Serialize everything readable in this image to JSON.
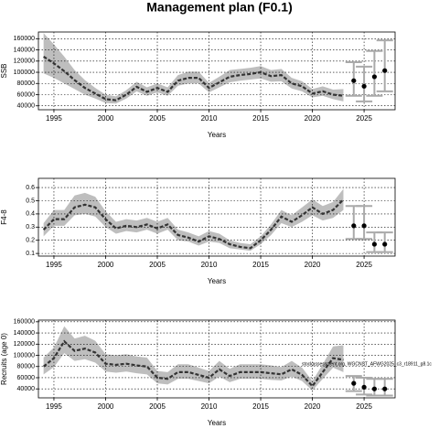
{
  "title": "Management plan (F0.1)",
  "chart_data": [
    {
      "type": "band-line",
      "xlabel": "Years",
      "ylabel": "SSB",
      "xlim": [
        1993.5,
        2028
      ],
      "xticks": [
        1995,
        2000,
        2005,
        2010,
        2015,
        2020,
        2025
      ],
      "ylim": [
        33000,
        172000
      ],
      "yticks": [
        40000,
        60000,
        80000,
        100000,
        120000,
        140000,
        160000
      ],
      "grid": true,
      "band_color": "#bebebe",
      "line_color": "#333333",
      "point_color": "#000000",
      "errorbar_color": "#aaaaaa",
      "x": [
        1994,
        1995,
        1996,
        1997,
        1998,
        1999,
        2000,
        2001,
        2002,
        2003,
        2004,
        2005,
        2006,
        2007,
        2008,
        2009,
        2010,
        2011,
        2012,
        2013,
        2014,
        2015,
        2016,
        2017,
        2018,
        2019,
        2020,
        2021,
        2022,
        2023
      ],
      "values": [
        128000,
        116000,
        102000,
        86000,
        72000,
        62000,
        52000,
        50000,
        60000,
        74000,
        65000,
        72000,
        65000,
        85000,
        90000,
        90000,
        72000,
        82000,
        92000,
        95000,
        97000,
        100000,
        93000,
        95000,
        80000,
        75000,
        62000,
        66000,
        60000,
        58000
      ],
      "upper": [
        170000,
        150000,
        128000,
        104000,
        86000,
        72000,
        60000,
        57000,
        68000,
        83000,
        73000,
        80000,
        73000,
        95000,
        101000,
        101000,
        81000,
        92000,
        104000,
        106000,
        108000,
        111000,
        104000,
        106000,
        90000,
        84000,
        70000,
        75000,
        69000,
        70000
      ],
      "lower": [
        98000,
        90000,
        80000,
        70000,
        60000,
        53000,
        45000,
        44000,
        53000,
        66000,
        58000,
        64000,
        58000,
        76000,
        80000,
        80000,
        64000,
        73000,
        82000,
        85000,
        87000,
        89000,
        83000,
        84000,
        71000,
        66000,
        55000,
        58000,
        52000,
        48000
      ],
      "forecast": {
        "x": [
          2024,
          2025,
          2026,
          2027
        ],
        "values": [
          85000,
          75000,
          92000,
          103000
        ],
        "low": [
          58000,
          48000,
          58000,
          66000
        ],
        "high": [
          118000,
          110000,
          138000,
          157000
        ]
      }
    },
    {
      "type": "band-line",
      "xlabel": "Years",
      "ylabel": "F4-8",
      "xlim": [
        1993.5,
        2028
      ],
      "xticks": [
        1995,
        2000,
        2005,
        2010,
        2015,
        2020,
        2025
      ],
      "ylim": [
        0.08,
        0.67
      ],
      "yticks": [
        0.1,
        0.2,
        0.3,
        0.4,
        0.5,
        0.6
      ],
      "grid": true,
      "band_color": "#bebebe",
      "line_color": "#333333",
      "point_color": "#000000",
      "errorbar_color": "#aaaaaa",
      "x": [
        1994,
        1995,
        1996,
        1997,
        1998,
        1999,
        2000,
        2001,
        2002,
        2003,
        2004,
        2005,
        2006,
        2007,
        2008,
        2009,
        2010,
        2011,
        2012,
        2013,
        2014,
        2015,
        2016,
        2017,
        2018,
        2019,
        2020,
        2021,
        2022,
        2023
      ],
      "values": [
        0.28,
        0.36,
        0.36,
        0.45,
        0.47,
        0.45,
        0.36,
        0.29,
        0.31,
        0.3,
        0.32,
        0.29,
        0.32,
        0.24,
        0.22,
        0.19,
        0.23,
        0.21,
        0.17,
        0.15,
        0.14,
        0.2,
        0.28,
        0.38,
        0.34,
        0.39,
        0.45,
        0.4,
        0.43,
        0.51
      ],
      "upper": [
        0.33,
        0.43,
        0.43,
        0.54,
        0.56,
        0.53,
        0.42,
        0.34,
        0.36,
        0.35,
        0.37,
        0.34,
        0.37,
        0.28,
        0.26,
        0.23,
        0.27,
        0.25,
        0.2,
        0.18,
        0.17,
        0.23,
        0.32,
        0.43,
        0.39,
        0.45,
        0.51,
        0.46,
        0.49,
        0.59
      ],
      "lower": [
        0.23,
        0.31,
        0.31,
        0.39,
        0.4,
        0.38,
        0.3,
        0.25,
        0.27,
        0.26,
        0.28,
        0.25,
        0.28,
        0.2,
        0.19,
        0.16,
        0.19,
        0.18,
        0.14,
        0.13,
        0.12,
        0.17,
        0.24,
        0.33,
        0.3,
        0.34,
        0.39,
        0.35,
        0.37,
        0.43
      ],
      "forecast": {
        "x": [
          2024,
          2025,
          2026,
          2027
        ],
        "values": [
          0.31,
          0.31,
          0.17,
          0.17
        ],
        "low": [
          0.21,
          0.21,
          0.11,
          0.11
        ],
        "high": [
          0.46,
          0.46,
          0.26,
          0.26
        ]
      }
    },
    {
      "type": "band-line",
      "xlabel": "Years",
      "ylabel": "Recruits (age 0)",
      "annotation": "stockassessment.org, WGCNST_AFWG2025_c3_r18911_g8.1c",
      "xlim": [
        1993.5,
        2028
      ],
      "xticks": [
        1995,
        2000,
        2005,
        2010,
        2015,
        2020,
        2025
      ],
      "ylim": [
        24000,
        163000
      ],
      "yticks": [
        40000,
        60000,
        80000,
        100000,
        120000,
        140000,
        160000
      ],
      "grid": true,
      "band_color": "#bebebe",
      "line_color": "#333333",
      "point_color": "#000000",
      "errorbar_color": "#aaaaaa",
      "x": [
        1994,
        1995,
        1996,
        1997,
        1998,
        1999,
        2000,
        2001,
        2002,
        2003,
        2004,
        2005,
        2006,
        2007,
        2008,
        2009,
        2010,
        2011,
        2012,
        2013,
        2014,
        2015,
        2016,
        2017,
        2018,
        2019,
        2020,
        2021,
        2022,
        2023
      ],
      "values": [
        80000,
        95000,
        125000,
        108000,
        112000,
        105000,
        85000,
        83000,
        85000,
        82000,
        80000,
        60000,
        58000,
        70000,
        70000,
        65000,
        60000,
        75000,
        63000,
        70000,
        70000,
        70000,
        68000,
        66000,
        75000,
        65000,
        45000,
        70000,
        95000,
        92000
      ],
      "upper": [
        96000,
        114000,
        152000,
        130000,
        135000,
        126000,
        102000,
        100000,
        102000,
        98000,
        96000,
        72000,
        70000,
        84000,
        84000,
        78000,
        72000,
        90000,
        76000,
        84000,
        84000,
        84000,
        82000,
        79000,
        90000,
        78000,
        54000,
        84000,
        116000,
        118000
      ],
      "lower": [
        66000,
        79000,
        104000,
        90000,
        93000,
        87000,
        71000,
        69000,
        71000,
        68000,
        66000,
        50000,
        48000,
        58000,
        58000,
        54000,
        50000,
        62000,
        52000,
        58000,
        58000,
        58000,
        56000,
        55000,
        62000,
        54000,
        37000,
        58000,
        78000,
        70000
      ],
      "forecast": {
        "x": [
          2024,
          2025,
          2026,
          2027
        ],
        "values": [
          50000,
          43000,
          40000,
          40000
        ],
        "low": [
          36000,
          30000,
          28000,
          28000
        ],
        "high": [
          63000,
          60000,
          58000,
          58000
        ]
      }
    }
  ]
}
